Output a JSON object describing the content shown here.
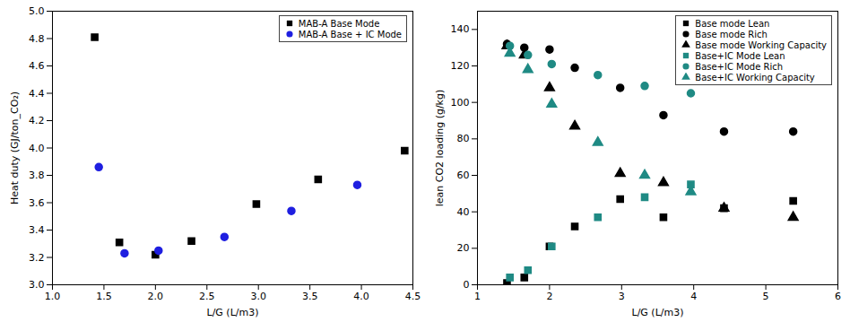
{
  "chart_data": [
    {
      "type": "scatter",
      "xlabel": "L/G (L/m3)",
      "ylabel": "Heat duty (GJ/ton_CO₂)",
      "xlim": [
        1.0,
        4.5
      ],
      "xticks": [
        {
          "value": 1.0,
          "label": "1.0"
        },
        {
          "value": 1.5,
          "label": "1.5"
        },
        {
          "value": 2.0,
          "label": "2.0"
        },
        {
          "value": 2.5,
          "label": "2.5"
        },
        {
          "value": 3.0,
          "label": "3.0"
        },
        {
          "value": 3.5,
          "label": "3.5"
        },
        {
          "value": 4.0,
          "label": "4.0"
        },
        {
          "value": 4.5,
          "label": "4.5"
        }
      ],
      "ylim": [
        3.0,
        5.0
      ],
      "yticks": [
        {
          "value": 3.0,
          "label": "3.0"
        },
        3.2,
        3.4,
        3.6,
        3.8,
        {
          "value": 4.0,
          "label": "4.0"
        },
        4.2,
        4.4,
        4.6,
        4.8,
        {
          "value": 5.0,
          "label": "5.0"
        }
      ],
      "legend": "top-right",
      "series": [
        {
          "name": "MAB-A Base Mode",
          "color": "#000000",
          "marker": "square",
          "x": [
            1.41,
            1.65,
            2.0,
            2.35,
            2.98,
            3.58,
            4.42
          ],
          "values": [
            4.81,
            3.31,
            3.22,
            3.32,
            3.59,
            3.77,
            3.98
          ]
        },
        {
          "name": "MAB-A Base + IC Mode",
          "color": "#1f1fe0",
          "marker": "circle",
          "x": [
            1.45,
            1.7,
            2.03,
            2.67,
            3.32,
            3.96
          ],
          "values": [
            3.86,
            3.23,
            3.25,
            3.35,
            3.54,
            3.73
          ]
        }
      ]
    },
    {
      "type": "scatter",
      "xlabel": "L/G (L/m3)",
      "ylabel": "lean CO2 loading (g/kg)",
      "xlim": [
        1,
        6
      ],
      "xticks": [
        1,
        2,
        3,
        4,
        5,
        6
      ],
      "ylim": [
        0,
        150
      ],
      "yticks": [
        0,
        20,
        40,
        60,
        80,
        100,
        120,
        140
      ],
      "legend": "top-right",
      "series": [
        {
          "name": "Base mode Lean",
          "color": "#000000",
          "marker": "square",
          "x": [
            1.41,
            1.65,
            2.0,
            2.35,
            2.98,
            3.58,
            4.42,
            5.38
          ],
          "values": [
            1,
            4,
            21,
            32,
            47,
            37,
            42,
            46
          ]
        },
        {
          "name": "Base mode Rich",
          "color": "#000000",
          "marker": "circle",
          "x": [
            1.41,
            1.65,
            2.0,
            2.35,
            2.98,
            3.58,
            4.42,
            5.38
          ],
          "values": [
            132,
            130,
            129,
            119,
            108,
            93,
            84,
            84
          ]
        },
        {
          "name": "Base mode Working Capacity",
          "color": "#000000",
          "marker": "triangle",
          "x": [
            1.41,
            1.65,
            2.0,
            2.35,
            2.98,
            3.58,
            4.42,
            5.38
          ],
          "values": [
            131,
            126,
            108,
            87,
            61,
            56,
            42,
            37
          ]
        },
        {
          "name": "Base+IC Mode Lean",
          "color": "#1f8a84",
          "marker": "square",
          "x": [
            1.45,
            1.7,
            2.03,
            2.67,
            3.32,
            3.96
          ],
          "values": [
            4,
            8,
            21,
            37,
            48,
            55
          ]
        },
        {
          "name": "Base+IC Mode Rich",
          "color": "#1f8a84",
          "marker": "circle",
          "x": [
            1.45,
            1.7,
            2.03,
            2.67,
            3.32,
            3.96
          ],
          "values": [
            131,
            126,
            121,
            115,
            109,
            105
          ]
        },
        {
          "name": "Base+IC Working Capacity",
          "color": "#1f8a84",
          "marker": "triangle",
          "x": [
            1.45,
            1.7,
            2.03,
            2.67,
            3.32,
            3.96
          ],
          "values": [
            127,
            118,
            99,
            78,
            60,
            51
          ]
        }
      ]
    }
  ]
}
